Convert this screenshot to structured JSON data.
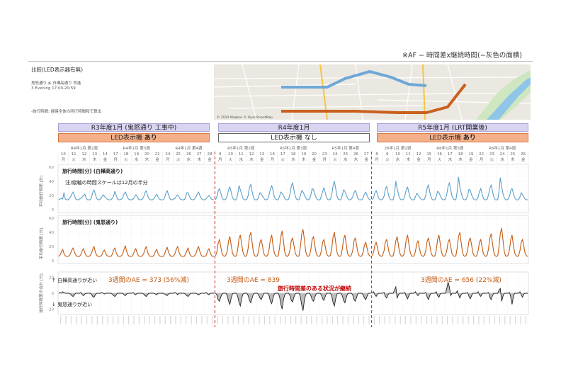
{
  "header": {
    "note": "※AF − 時間差x継続時間(−灰色の面積)",
    "comparison_title": "比較(LED表示器有無)",
    "route": "鬼怒通り ≶ 白樺高通り 西進",
    "time": "3 Evening 17:00-20:59",
    "note2": "-旅行時間: 経路全体の所行時間和で算出"
  },
  "map": {
    "attribution": "© 2024 Mapbox © OpenStreetMap",
    "route_colors": {
      "shirakaba": "#6fa8d6",
      "kinu": "#c9601d"
    }
  },
  "periods": [
    {
      "title": "R3年度1月 (鬼怒通り 工事中)",
      "led_prefix": "LED表示機 ",
      "led_status": "あり",
      "led_on": true,
      "weeks": [
        "R4年1月 第2週",
        "R4年1月 第3週",
        "R4年1月 第4週"
      ],
      "dates": [
        "10",
        "11",
        "12",
        "13",
        "14",
        "17",
        "18",
        "19",
        "20",
        "21",
        "24",
        "25",
        "26",
        "27",
        "28"
      ],
      "days": [
        "月",
        "火",
        "水",
        "木",
        "金",
        "月",
        "火",
        "水",
        "木",
        "金",
        "月",
        "火",
        "水",
        "木",
        "金"
      ],
      "ae_label": "3週間のAE = 373 (56%減)"
    },
    {
      "title": "R4年度1月",
      "led_prefix": "LED表示機 ",
      "led_status": "なし",
      "led_on": false,
      "weeks": [
        "R5年1月 第2週",
        "R5年1月 第3週",
        "R5年1月 第4週"
      ],
      "dates": [
        "9",
        "10",
        "11",
        "12",
        "13",
        "16",
        "17",
        "18",
        "19",
        "20",
        "23",
        "24",
        "25",
        "26",
        "27"
      ],
      "days": [
        "月",
        "火",
        "水",
        "木",
        "金",
        "月",
        "火",
        "水",
        "木",
        "金",
        "月",
        "火",
        "水",
        "木",
        "金"
      ],
      "ae_label": "3週間のAE = 839"
    },
    {
      "title": "R5年度1月 (LRT開業後)",
      "led_prefix": "LED表示機 ",
      "led_status": "あり",
      "led_on": true,
      "weeks": [
        "26年1月 第2週",
        "R6年1月 第3週",
        "R6年1月 第4週"
      ],
      "dates": [
        "8",
        "9",
        "10",
        "11",
        "12",
        "15",
        "16",
        "17",
        "18",
        "19",
        "22",
        "23",
        "24",
        "25",
        "26"
      ],
      "days": [
        "月",
        "火",
        "水",
        "木",
        "金",
        "月",
        "火",
        "水",
        "木",
        "金",
        "月",
        "火",
        "水",
        "木",
        "金"
      ],
      "ae_label": "3週間のAE = 656 (22%減)"
    }
  ],
  "panels": {
    "shirakaba": {
      "label": "旅行時間[分] (白樺高通り)",
      "note": "注)縦軸の時間スケールは12月の半分",
      "ylabel": "平均旅行時間 [分]",
      "yticks": [
        "60",
        "40",
        "20",
        "0"
      ],
      "color": "#5b9fc9"
    },
    "kinu": {
      "label": "旅行時間[分] (鬼怒通り)",
      "ylabel": "平均旅行時間 [分]",
      "yticks": [
        "60",
        "40",
        "20",
        "0"
      ],
      "color": "#c55a11"
    },
    "diff": {
      "ylabel": "旅行時間差の合計 [分]",
      "yticks": [
        "20",
        "0",
        "-20"
      ],
      "up_label": "↑ 白樺高通りが近い",
      "down_label": "↓ 鬼怒通りが近い",
      "callout": "旅行時間差のある状況が継続",
      "callout_color": "#c00000"
    }
  },
  "chart_data": {
    "type": "line",
    "period_count": 3,
    "days_per_period": 15,
    "samples_per_day": 8,
    "ylim_time": [
      0,
      60
    ],
    "ylim_diff": [
      -25,
      25
    ],
    "series": [
      {
        "name": "旅行時間[分] (白樺高通り)",
        "period1": [
          14,
          15,
          16,
          15,
          24,
          15,
          14,
          14,
          15,
          18,
          22,
          25,
          20,
          15,
          14,
          14,
          15,
          16,
          18,
          20,
          22,
          16,
          14,
          14,
          14,
          17,
          24,
          28,
          22,
          16,
          14,
          14,
          15,
          18,
          21,
          19,
          17,
          15,
          14,
          14,
          14,
          16,
          19,
          26,
          20,
          15,
          14,
          14,
          15,
          17,
          22,
          25,
          20,
          16,
          14,
          14,
          14,
          15,
          18,
          21,
          19,
          15,
          14,
          14,
          15,
          18,
          24,
          27,
          20,
          16,
          14,
          14,
          14,
          16,
          19,
          22,
          18,
          15,
          14,
          14,
          14,
          17,
          23,
          27,
          21,
          16,
          14,
          14,
          15,
          16,
          19,
          21,
          18,
          15,
          14,
          14,
          14,
          17,
          24,
          24,
          19,
          15,
          14,
          14,
          15,
          18,
          22,
          25,
          20,
          16,
          14,
          14,
          14,
          16,
          18,
          20,
          17,
          15,
          14,
          14
        ],
        "period2": [
          14,
          18,
          26,
          30,
          24,
          17,
          14,
          14,
          15,
          20,
          28,
          32,
          25,
          17,
          14,
          14,
          14,
          22,
          34,
          28,
          22,
          16,
          14,
          14,
          15,
          20,
          31,
          36,
          26,
          18,
          14,
          14,
          14,
          18,
          24,
          22,
          19,
          16,
          14,
          14,
          15,
          21,
          29,
          34,
          27,
          18,
          15,
          14,
          14,
          19,
          25,
          23,
          20,
          16,
          14,
          14,
          15,
          22,
          33,
          38,
          28,
          19,
          15,
          14,
          14,
          20,
          27,
          25,
          21,
          17,
          14,
          14,
          15,
          21,
          30,
          28,
          22,
          17,
          14,
          14,
          14,
          19,
          26,
          31,
          24,
          17,
          14,
          14,
          15,
          22,
          34,
          40,
          30,
          19,
          15,
          14,
          14,
          20,
          28,
          26,
          21,
          17,
          14,
          14,
          15,
          18,
          24,
          27,
          22,
          16,
          14,
          14,
          14,
          17,
          22,
          25,
          20,
          16,
          14,
          14
        ],
        "period3": [
          14,
          17,
          24,
          27,
          21,
          16,
          14,
          14,
          15,
          19,
          29,
          33,
          24,
          17,
          14,
          14,
          14,
          22,
          40,
          30,
          22,
          16,
          14,
          14,
          15,
          20,
          28,
          32,
          24,
          17,
          14,
          14,
          14,
          18,
          23,
          21,
          18,
          16,
          14,
          14,
          15,
          21,
          31,
          35,
          25,
          18,
          14,
          14,
          14,
          19,
          26,
          24,
          20,
          16,
          14,
          14,
          15,
          22,
          33,
          38,
          28,
          19,
          15,
          14,
          14,
          26,
          46,
          32,
          24,
          17,
          14,
          14,
          15,
          20,
          29,
          27,
          21,
          17,
          14,
          14,
          14,
          18,
          25,
          30,
          23,
          16,
          14,
          14,
          15,
          21,
          30,
          35,
          26,
          18,
          14,
          14,
          14,
          26,
          45,
          33,
          23,
          17,
          14,
          14,
          15,
          19,
          27,
          30,
          23,
          17,
          14,
          14,
          14,
          18,
          24,
          21,
          18,
          15,
          14,
          14
        ]
      },
      {
        "name": "旅行時間[分] (鬼怒通り)",
        "period1": [
          6,
          8,
          12,
          16,
          10,
          7,
          6,
          6,
          7,
          10,
          15,
          18,
          12,
          8,
          6,
          6,
          6,
          9,
          14,
          17,
          11,
          7,
          6,
          6,
          7,
          10,
          16,
          20,
          12,
          8,
          6,
          6,
          6,
          8,
          13,
          15,
          10,
          7,
          6,
          6,
          6,
          9,
          15,
          18,
          11,
          7,
          6,
          6,
          7,
          10,
          16,
          21,
          13,
          8,
          6,
          6,
          6,
          9,
          14,
          17,
          11,
          7,
          6,
          6,
          7,
          10,
          16,
          20,
          12,
          8,
          6,
          6,
          6,
          8,
          13,
          16,
          10,
          7,
          6,
          6,
          6,
          9,
          15,
          19,
          12,
          8,
          6,
          6,
          7,
          10,
          16,
          20,
          12,
          8,
          6,
          6,
          6,
          9,
          14,
          18,
          11,
          7,
          6,
          6,
          7,
          10,
          16,
          20,
          13,
          8,
          6,
          6,
          6,
          8,
          14,
          17,
          11,
          7,
          6,
          6
        ],
        "period2": [
          7,
          12,
          24,
          30,
          20,
          10,
          7,
          6,
          8,
          14,
          28,
          34,
          22,
          11,
          7,
          6,
          7,
          16,
          32,
          36,
          24,
          12,
          7,
          6,
          8,
          18,
          34,
          40,
          26,
          12,
          7,
          6,
          7,
          14,
          26,
          30,
          20,
          10,
          7,
          6,
          8,
          16,
          30,
          36,
          22,
          11,
          7,
          6,
          7,
          18,
          34,
          42,
          28,
          12,
          7,
          6,
          8,
          15,
          28,
          32,
          22,
          11,
          7,
          6,
          7,
          20,
          38,
          44,
          30,
          13,
          7,
          6,
          8,
          16,
          30,
          34,
          22,
          11,
          7,
          6,
          7,
          14,
          26,
          30,
          20,
          10,
          7,
          6,
          8,
          18,
          34,
          40,
          26,
          12,
          7,
          6,
          7,
          16,
          30,
          36,
          24,
          11,
          7,
          6,
          8,
          14,
          28,
          32,
          22,
          11,
          7,
          6,
          7,
          12,
          22,
          26,
          18,
          9,
          7,
          6
        ],
        "period3": [
          7,
          12,
          22,
          26,
          18,
          9,
          7,
          6,
          8,
          14,
          26,
          30,
          20,
          10,
          7,
          6,
          7,
          15,
          28,
          34,
          22,
          11,
          7,
          6,
          8,
          16,
          30,
          36,
          24,
          12,
          7,
          6,
          7,
          13,
          24,
          28,
          18,
          10,
          7,
          6,
          8,
          15,
          28,
          32,
          22,
          11,
          7,
          6,
          7,
          16,
          30,
          36,
          24,
          12,
          7,
          6,
          8,
          14,
          26,
          30,
          20,
          10,
          7,
          6,
          7,
          18,
          34,
          40,
          26,
          12,
          7,
          6,
          8,
          15,
          28,
          32,
          22,
          11,
          7,
          6,
          7,
          14,
          26,
          30,
          20,
          10,
          7,
          6,
          8,
          17,
          32,
          38,
          24,
          12,
          7,
          6,
          7,
          20,
          38,
          46,
          30,
          13,
          7,
          6,
          8,
          16,
          30,
          36,
          22,
          11,
          7,
          6,
          7,
          14,
          26,
          30,
          20,
          10,
          7,
          6
        ]
      },
      {
        "name": "旅行時間差",
        "period1": [
          0,
          1,
          0,
          2,
          1,
          0,
          0,
          0,
          0,
          -1,
          -3,
          -4,
          -2,
          0,
          0,
          0,
          0,
          1,
          -2,
          -3,
          -1,
          0,
          0,
          0,
          0,
          -1,
          -4,
          -5,
          -2,
          0,
          0,
          0,
          0,
          1,
          0,
          -1,
          0,
          0,
          0,
          0,
          0,
          -1,
          -3,
          -4,
          -2,
          0,
          0,
          0,
          0,
          0,
          -2,
          -3,
          -1,
          0,
          0,
          0,
          0,
          1,
          -1,
          -2,
          0,
          0,
          0,
          0,
          0,
          -1,
          -3,
          -4,
          -2,
          0,
          0,
          0,
          0,
          0,
          -1,
          -2,
          0,
          0,
          0,
          0,
          0,
          -1,
          -2,
          -3,
          -1,
          0,
          0,
          0,
          0,
          1,
          0,
          -2,
          0,
          0,
          0,
          0,
          0,
          -1,
          -3,
          -4,
          -2,
          0,
          0,
          0,
          0,
          0,
          -1,
          -2,
          -1,
          0,
          0,
          0,
          0,
          1,
          -1,
          -2,
          0,
          0,
          0,
          0
        ],
        "period2": [
          0,
          -2,
          -8,
          -10,
          -5,
          -1,
          0,
          0,
          0,
          -3,
          -10,
          -14,
          -6,
          -1,
          0,
          0,
          0,
          -4,
          -12,
          -16,
          -7,
          -1,
          0,
          0,
          0,
          -3,
          -9,
          -12,
          -6,
          -1,
          0,
          0,
          0,
          -2,
          -6,
          -8,
          -4,
          0,
          0,
          0,
          0,
          -3,
          -10,
          -13,
          -6,
          -1,
          0,
          0,
          0,
          -4,
          -14,
          -20,
          -8,
          -2,
          0,
          0,
          0,
          -3,
          -9,
          -11,
          -5,
          -1,
          0,
          0,
          0,
          -5,
          -15,
          -22,
          -9,
          -2,
          0,
          0,
          0,
          -3,
          -8,
          -10,
          -5,
          -1,
          0,
          0,
          0,
          -2,
          -7,
          -9,
          -4,
          0,
          0,
          0,
          0,
          -4,
          -12,
          -16,
          -7,
          -1,
          0,
          0,
          0,
          -3,
          -9,
          -12,
          -6,
          -1,
          0,
          0,
          0,
          -2,
          -8,
          -10,
          -5,
          0,
          0,
          0,
          0,
          -2,
          -6,
          -8,
          -4,
          0,
          0,
          0
        ],
        "period3": [
          0,
          2,
          -2,
          -4,
          -1,
          0,
          0,
          0,
          0,
          1,
          -4,
          -6,
          -2,
          0,
          0,
          0,
          0,
          4,
          8,
          -6,
          -2,
          0,
          0,
          0,
          0,
          1,
          -4,
          -7,
          -3,
          0,
          0,
          0,
          0,
          2,
          -1,
          -3,
          0,
          0,
          0,
          0,
          0,
          1,
          -5,
          -8,
          -3,
          0,
          0,
          0,
          0,
          2,
          -3,
          -5,
          -1,
          0,
          0,
          0,
          0,
          6,
          14,
          8,
          -3,
          0,
          0,
          0,
          0,
          3,
          -2,
          -6,
          -2,
          0,
          0,
          0,
          0,
          1,
          -4,
          -7,
          -3,
          0,
          0,
          0,
          0,
          2,
          -2,
          -4,
          -1,
          0,
          0,
          0,
          0,
          1,
          -5,
          -8,
          -3,
          0,
          0,
          0,
          0,
          4,
          6,
          -10,
          -4,
          0,
          0,
          0,
          0,
          1,
          -5,
          -14,
          -4,
          0,
          0,
          0,
          0,
          2,
          -2,
          -5,
          -1,
          0,
          0,
          0
        ]
      }
    ]
  }
}
